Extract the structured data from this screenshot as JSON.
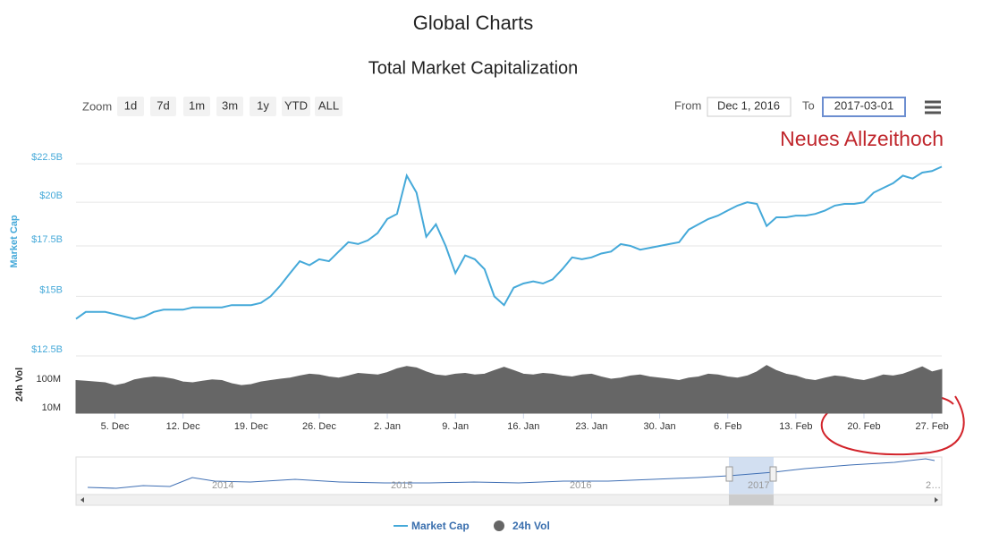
{
  "page_title": "Global Charts",
  "controls": {
    "zoom_label": "Zoom",
    "zoom_buttons": [
      "1d",
      "7d",
      "1m",
      "3m",
      "1y",
      "YTD",
      "ALL"
    ],
    "from_label": "From",
    "from_value": "Dec 1, 2016",
    "to_label": "To",
    "to_value": "2017-03-01"
  },
  "navigator": {
    "labels": [
      "2014",
      "2015",
      "2016",
      "2017",
      "2…"
    ]
  },
  "chart_data": {
    "type": "line",
    "title": "Total Market Capitalization",
    "annotation": "Neues Allzeithoch",
    "ylabel": "Market Cap",
    "y2label": "24h Vol",
    "x": [
      "2016-12-01",
      "2016-12-02",
      "2016-12-03",
      "2016-12-04",
      "2016-12-05",
      "2016-12-06",
      "2016-12-07",
      "2016-12-08",
      "2016-12-09",
      "2016-12-10",
      "2016-12-11",
      "2016-12-12",
      "2016-12-13",
      "2016-12-14",
      "2016-12-15",
      "2016-12-16",
      "2016-12-17",
      "2016-12-18",
      "2016-12-19",
      "2016-12-20",
      "2016-12-21",
      "2016-12-22",
      "2016-12-23",
      "2016-12-24",
      "2016-12-25",
      "2016-12-26",
      "2016-12-27",
      "2016-12-28",
      "2016-12-29",
      "2016-12-30",
      "2016-12-31",
      "2017-01-01",
      "2017-01-02",
      "2017-01-03",
      "2017-01-04",
      "2017-01-05",
      "2017-01-06",
      "2017-01-07",
      "2017-01-08",
      "2017-01-09",
      "2017-01-10",
      "2017-01-11",
      "2017-01-12",
      "2017-01-13",
      "2017-01-14",
      "2017-01-15",
      "2017-01-16",
      "2017-01-17",
      "2017-01-18",
      "2017-01-19",
      "2017-01-20",
      "2017-01-21",
      "2017-01-22",
      "2017-01-23",
      "2017-01-24",
      "2017-01-25",
      "2017-01-26",
      "2017-01-27",
      "2017-01-28",
      "2017-01-29",
      "2017-01-30",
      "2017-01-31",
      "2017-02-01",
      "2017-02-02",
      "2017-02-03",
      "2017-02-04",
      "2017-02-05",
      "2017-02-06",
      "2017-02-07",
      "2017-02-08",
      "2017-02-09",
      "2017-02-10",
      "2017-02-11",
      "2017-02-12",
      "2017-02-13",
      "2017-02-14",
      "2017-02-15",
      "2017-02-16",
      "2017-02-17",
      "2017-02-18",
      "2017-02-19",
      "2017-02-20",
      "2017-02-21",
      "2017-02-22",
      "2017-02-23",
      "2017-02-24",
      "2017-02-25",
      "2017-02-26",
      "2017-02-27",
      "2017-02-28"
    ],
    "xlim": [
      "2016-12-01",
      "2017-02-28"
    ],
    "xticks": [
      {
        "value": "2016-12-05",
        "label": "5. Dec"
      },
      {
        "value": "2016-12-12",
        "label": "12. Dec"
      },
      {
        "value": "2016-12-19",
        "label": "19. Dec"
      },
      {
        "value": "2016-12-26",
        "label": "26. Dec"
      },
      {
        "value": "2017-01-02",
        "label": "2. Jan"
      },
      {
        "value": "2017-01-09",
        "label": "9. Jan"
      },
      {
        "value": "2017-01-16",
        "label": "16. Jan"
      },
      {
        "value": "2017-01-23",
        "label": "23. Jan"
      },
      {
        "value": "2017-01-30",
        "label": "30. Jan"
      },
      {
        "value": "2017-02-06",
        "label": "6. Feb"
      },
      {
        "value": "2017-02-13",
        "label": "13. Feb"
      },
      {
        "value": "2017-02-20",
        "label": "20. Feb"
      },
      {
        "value": "2017-02-27",
        "label": "27. Feb"
      }
    ],
    "ylim": [
      12.5,
      24.5
    ],
    "ylog": true,
    "grid": true,
    "yticks": [
      {
        "value": 12.5,
        "label": "$12.5B"
      },
      {
        "value": 15,
        "label": "$15B"
      },
      {
        "value": 17.5,
        "label": "$17.5B"
      },
      {
        "value": 20,
        "label": "$20B"
      },
      {
        "value": 22.5,
        "label": "$22.5B"
      }
    ],
    "y2lim": [
      6.5,
      650
    ],
    "y2log": true,
    "y2ticks": [
      {
        "value": 10,
        "label": "10M"
      },
      {
        "value": 100,
        "label": "100M"
      }
    ],
    "series": [
      {
        "name": "Market Cap",
        "color": "#45a9d9",
        "axis": "y",
        "values": [
          14.0,
          14.3,
          14.3,
          14.3,
          14.2,
          14.1,
          14.0,
          14.1,
          14.3,
          14.4,
          14.4,
          14.4,
          14.5,
          14.5,
          14.5,
          14.5,
          14.6,
          14.6,
          14.6,
          14.7,
          15.0,
          15.5,
          16.1,
          16.7,
          16.5,
          16.8,
          16.7,
          17.2,
          17.7,
          17.6,
          17.8,
          18.2,
          19.0,
          19.3,
          21.7,
          20.6,
          18.0,
          18.7,
          17.5,
          16.1,
          17.0,
          16.8,
          16.3,
          15.0,
          14.6,
          15.4,
          15.6,
          15.7,
          15.6,
          15.8,
          16.3,
          16.9,
          16.8,
          16.9,
          17.1,
          17.2,
          17.6,
          17.5,
          17.3,
          17.4,
          17.5,
          17.6,
          17.7,
          18.4,
          18.7,
          19.0,
          19.2,
          19.5,
          19.8,
          20.0,
          19.9,
          18.6,
          19.1,
          19.1,
          19.2,
          19.2,
          19.3,
          19.5,
          19.8,
          19.9,
          19.9,
          20.0,
          20.6,
          20.9,
          21.2,
          21.7,
          21.5,
          21.9,
          22.0,
          22.3
        ]
      },
      {
        "name": "24h Vol",
        "color": "#666666",
        "axis": "y2",
        "values": [
          90,
          85,
          80,
          75,
          60,
          70,
          95,
          110,
          120,
          115,
          100,
          80,
          75,
          85,
          95,
          90,
          70,
          60,
          65,
          80,
          90,
          100,
          110,
          130,
          150,
          140,
          120,
          110,
          130,
          160,
          150,
          140,
          170,
          230,
          280,
          250,
          180,
          140,
          130,
          150,
          160,
          140,
          150,
          200,
          260,
          200,
          150,
          140,
          160,
          150,
          130,
          120,
          140,
          150,
          120,
          100,
          110,
          130,
          140,
          120,
          110,
          100,
          90,
          110,
          120,
          150,
          140,
          120,
          110,
          130,
          180,
          300,
          200,
          150,
          130,
          100,
          90,
          110,
          130,
          120,
          100,
          90,
          110,
          140,
          130,
          150,
          200,
          270,
          180,
          220
        ]
      }
    ]
  }
}
